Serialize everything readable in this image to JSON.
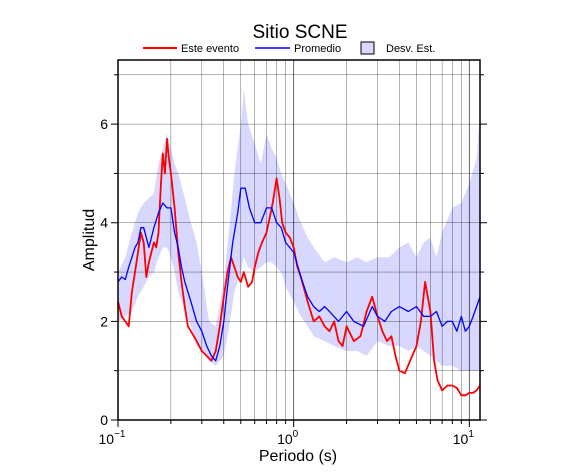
{
  "chart_data": {
    "type": "line",
    "title": "Sitio SCNE",
    "xlabel": "Periodo (s)",
    "ylabel": "Amplitud",
    "x_scale": "log",
    "xlim": [
      0.1,
      11.5
    ],
    "ylim": [
      0,
      7.3
    ],
    "grid": true,
    "legend_position": "top",
    "x_tick_labels": [
      {
        "base": "10",
        "exp": "−1",
        "value": 0.1
      },
      {
        "base": "10",
        "exp": "0",
        "value": 1
      },
      {
        "base": "10",
        "exp": "1",
        "value": 10
      }
    ],
    "y_tick_labels": [
      "0",
      "2",
      "4",
      "6"
    ],
    "y_ticks": [
      0,
      2,
      4,
      6
    ],
    "series": [
      {
        "name": "Este evento",
        "color": "#ff0000",
        "x": [
          0.1,
          0.105,
          0.11,
          0.115,
          0.12,
          0.125,
          0.13,
          0.135,
          0.14,
          0.145,
          0.15,
          0.155,
          0.16,
          0.165,
          0.17,
          0.175,
          0.18,
          0.185,
          0.19,
          0.195,
          0.2,
          0.21,
          0.22,
          0.23,
          0.24,
          0.25,
          0.26,
          0.28,
          0.3,
          0.32,
          0.34,
          0.36,
          0.38,
          0.4,
          0.42,
          0.44,
          0.46,
          0.48,
          0.5,
          0.52,
          0.55,
          0.58,
          0.6,
          0.63,
          0.66,
          0.7,
          0.73,
          0.76,
          0.8,
          0.83,
          0.86,
          0.9,
          0.95,
          1.0,
          1.05,
          1.1,
          1.2,
          1.3,
          1.4,
          1.5,
          1.6,
          1.7,
          1.8,
          1.9,
          2.0,
          2.2,
          2.4,
          2.6,
          2.8,
          3.0,
          3.2,
          3.4,
          3.6,
          3.8,
          4.0,
          4.3,
          4.6,
          5.0,
          5.3,
          5.6,
          6.0,
          6.3,
          6.6,
          7.0,
          7.5,
          8.0,
          8.5,
          9.0,
          9.5,
          10.0,
          10.5,
          11.0,
          11.5
        ],
        "values": [
          2.4,
          2.1,
          2.0,
          1.9,
          2.6,
          3.0,
          3.4,
          3.8,
          3.6,
          2.9,
          3.2,
          3.4,
          3.6,
          3.5,
          3.8,
          4.7,
          5.4,
          5.0,
          5.7,
          5.3,
          5.0,
          4.3,
          3.4,
          2.8,
          2.3,
          1.9,
          1.8,
          1.6,
          1.4,
          1.3,
          1.2,
          1.4,
          1.9,
          2.5,
          3.0,
          3.3,
          3.1,
          2.9,
          2.8,
          3.0,
          2.7,
          2.8,
          3.1,
          3.4,
          3.6,
          3.8,
          4.1,
          4.4,
          4.9,
          4.5,
          4.0,
          3.8,
          3.7,
          3.5,
          3.1,
          2.9,
          2.4,
          2.0,
          2.1,
          1.9,
          1.8,
          2.0,
          1.6,
          1.5,
          1.9,
          1.6,
          1.7,
          2.2,
          2.5,
          2.1,
          1.8,
          1.6,
          1.7,
          1.3,
          1.0,
          0.95,
          1.2,
          1.5,
          2.0,
          2.8,
          2.2,
          1.2,
          0.8,
          0.6,
          0.7,
          0.7,
          0.65,
          0.5,
          0.5,
          0.55,
          0.55,
          0.6,
          0.7
        ]
      },
      {
        "name": "Promedio",
        "color": "#0000ff",
        "x": [
          0.1,
          0.105,
          0.11,
          0.115,
          0.12,
          0.125,
          0.13,
          0.135,
          0.14,
          0.15,
          0.16,
          0.17,
          0.18,
          0.19,
          0.2,
          0.21,
          0.22,
          0.23,
          0.24,
          0.26,
          0.28,
          0.3,
          0.32,
          0.34,
          0.36,
          0.38,
          0.4,
          0.42,
          0.45,
          0.48,
          0.5,
          0.53,
          0.56,
          0.6,
          0.65,
          0.7,
          0.75,
          0.8,
          0.85,
          0.9,
          1.0,
          1.1,
          1.2,
          1.3,
          1.4,
          1.5,
          1.6,
          1.8,
          2.0,
          2.2,
          2.5,
          2.8,
          3.0,
          3.3,
          3.6,
          4.0,
          4.5,
          5.0,
          5.5,
          6.0,
          6.5,
          7.0,
          7.5,
          8.0,
          8.5,
          9.0,
          9.5,
          10.0,
          10.5,
          11.0,
          11.5
        ],
        "values": [
          2.8,
          2.9,
          2.85,
          3.1,
          3.3,
          3.5,
          3.6,
          3.9,
          3.9,
          3.5,
          3.9,
          4.2,
          4.4,
          4.3,
          4.3,
          3.8,
          3.5,
          3.1,
          2.8,
          2.4,
          2.0,
          1.8,
          1.5,
          1.3,
          1.2,
          1.5,
          2.0,
          2.7,
          3.6,
          4.2,
          4.7,
          4.7,
          4.3,
          4.0,
          4.0,
          4.3,
          4.3,
          4.0,
          3.9,
          3.6,
          3.4,
          2.9,
          2.5,
          2.3,
          2.2,
          2.3,
          2.2,
          2.0,
          2.2,
          2.0,
          1.9,
          2.3,
          2.1,
          2.0,
          2.2,
          2.3,
          2.2,
          2.3,
          2.1,
          2.1,
          2.2,
          1.9,
          2.0,
          2.0,
          1.8,
          2.1,
          1.8,
          1.9,
          2.1,
          2.3,
          2.5
        ]
      }
    ],
    "band": {
      "name": "Desv. Est.",
      "fill": "#d8d8ff",
      "stroke": "#000000",
      "x": [
        0.1,
        0.11,
        0.12,
        0.13,
        0.14,
        0.15,
        0.16,
        0.17,
        0.18,
        0.19,
        0.2,
        0.21,
        0.22,
        0.24,
        0.26,
        0.28,
        0.3,
        0.33,
        0.36,
        0.4,
        0.43,
        0.46,
        0.5,
        0.52,
        0.55,
        0.6,
        0.65,
        0.7,
        0.75,
        0.8,
        0.85,
        0.9,
        1.0,
        1.1,
        1.2,
        1.3,
        1.5,
        1.7,
        2.0,
        2.3,
        2.6,
        3.0,
        3.5,
        4.0,
        4.5,
        5.0,
        5.5,
        6.0,
        6.5,
        7.0,
        8.0,
        9.0,
        10.0,
        11.0,
        11.5
      ],
      "lower": [
        2.0,
        2.1,
        2.2,
        2.5,
        2.7,
        2.9,
        3.0,
        3.3,
        3.5,
        3.5,
        3.3,
        3.0,
        2.6,
        2.2,
        1.9,
        1.5,
        1.4,
        1.2,
        1.1,
        1.3,
        1.9,
        2.6,
        3.0,
        3.3,
        3.1,
        3.0,
        3.1,
        3.2,
        3.2,
        3.1,
        3.0,
        2.7,
        2.4,
        2.1,
        1.9,
        1.7,
        1.6,
        1.5,
        1.4,
        1.4,
        1.3,
        1.6,
        1.5,
        1.5,
        1.4,
        1.5,
        1.4,
        1.3,
        1.2,
        1.1,
        1.1,
        1.0,
        1.0,
        1.0,
        1.0
      ],
      "upper": [
        3.0,
        3.3,
        3.8,
        4.2,
        4.4,
        4.5,
        4.6,
        5.2,
        5.5,
        5.8,
        5.5,
        5.2,
        5.0,
        4.5,
        4.0,
        3.6,
        3.0,
        2.0,
        1.9,
        2.8,
        3.9,
        5.0,
        6.0,
        6.7,
        6.0,
        5.6,
        5.2,
        5.8,
        5.5,
        5.3,
        5.0,
        4.8,
        4.4,
        4.0,
        3.7,
        3.5,
        3.2,
        3.3,
        3.2,
        3.3,
        3.2,
        3.3,
        3.3,
        3.5,
        3.6,
        3.3,
        3.6,
        3.7,
        3.3,
        3.8,
        4.3,
        4.4,
        4.8,
        5.3,
        6.3
      ]
    }
  }
}
